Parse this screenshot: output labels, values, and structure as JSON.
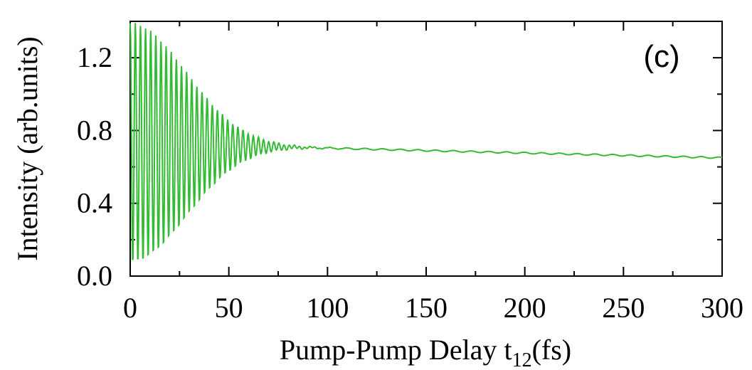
{
  "chart_data": {
    "type": "line",
    "panel_label": "(c)",
    "xlabel_main": "Pump-Pump Delay t",
    "xlabel_sub": "12",
    "xlabel_tail": "(fs)",
    "ylabel": "Intensity (arb.units)",
    "xlim": [
      0,
      300
    ],
    "ylim": [
      0.0,
      1.4
    ],
    "x_ticks": [
      0,
      50,
      100,
      150,
      200,
      250,
      300
    ],
    "x_tick_labels": [
      "0",
      "50",
      "100",
      "150",
      "200",
      "250",
      "300"
    ],
    "y_ticks": [
      0.0,
      0.4,
      0.8,
      1.2
    ],
    "y_tick_labels": [
      "0.0",
      "0.4",
      "0.8",
      "1.2"
    ],
    "grid": false,
    "legend": "none",
    "series": [
      {
        "color": "#33bb33",
        "model": "damped_oscillation",
        "oscillation_period_fs": 2.6,
        "decay_time_fs": 38,
        "initial_amplitude": 0.66,
        "baseline_start": 0.73,
        "baseline_end": 0.65,
        "sample_step_fs": 0.2,
        "envelope_checkpoints": {
          "x": [
            0,
            10,
            25,
            40,
            55,
            70,
            80,
            100,
            150,
            200,
            250,
            300
          ],
          "y_max": [
            1.39,
            1.33,
            1.22,
            1.06,
            0.9,
            0.77,
            0.74,
            0.72,
            0.7,
            0.68,
            0.665,
            0.65
          ],
          "y_min": [
            0.08,
            0.12,
            0.24,
            0.39,
            0.55,
            0.68,
            0.71,
            0.71,
            0.69,
            0.675,
            0.66,
            0.645
          ]
        }
      }
    ]
  }
}
